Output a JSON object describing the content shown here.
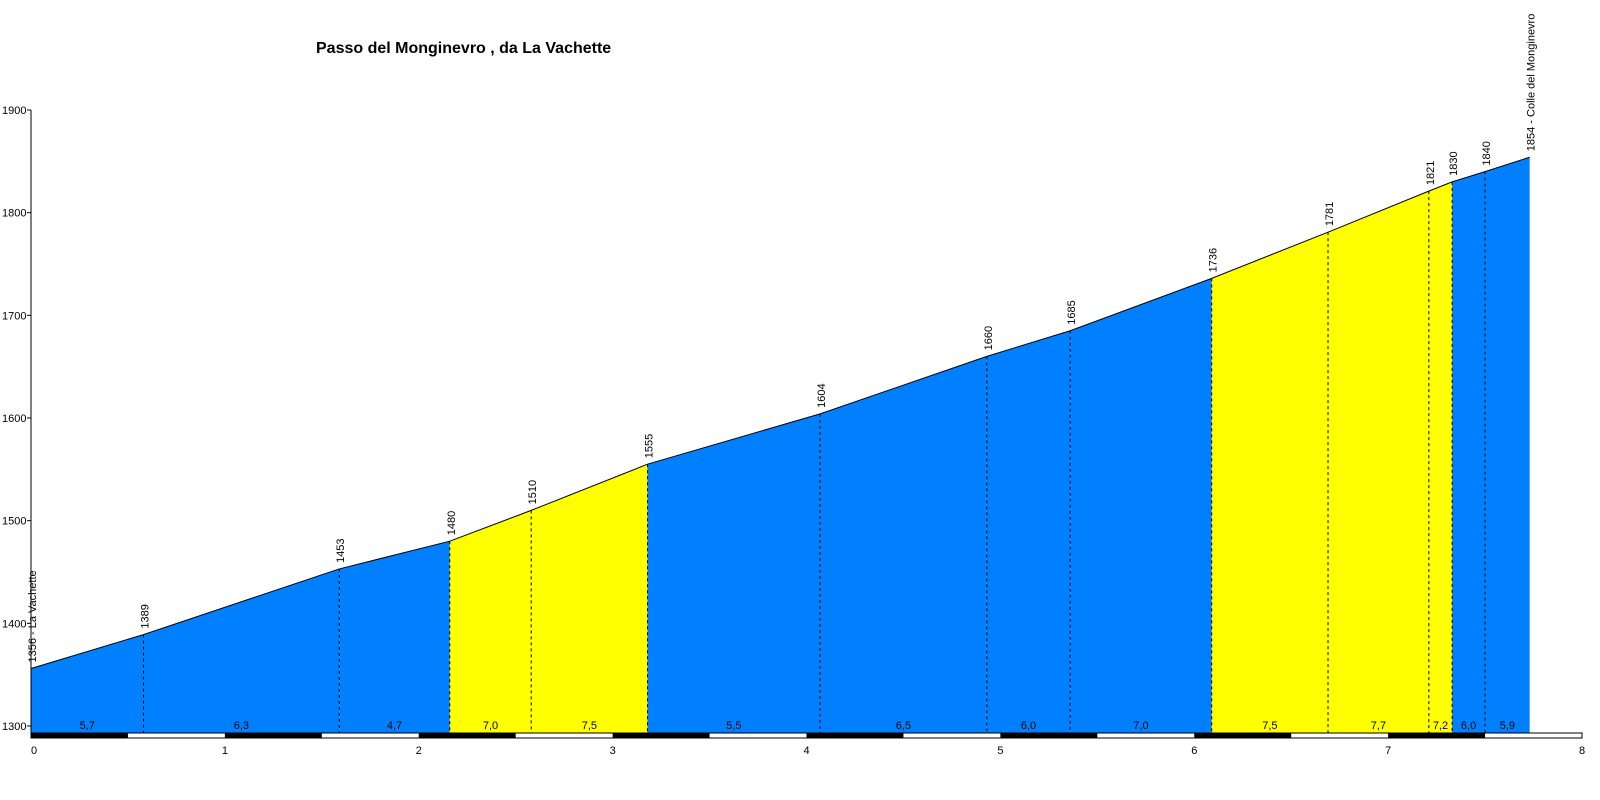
{
  "chart_data": {
    "type": "area",
    "title": "Passo del Monginevro , da La Vachette",
    "xlabel": "",
    "ylabel": "",
    "xlim": [
      0,
      8
    ],
    "ylim": [
      1300,
      1900
    ],
    "x_ticks": [
      "0",
      "1",
      "2",
      "3",
      "4",
      "5",
      "6",
      "7",
      "8"
    ],
    "y_ticks": [
      "1300",
      "1400",
      "1500",
      "1600",
      "1700",
      "1800",
      "1900"
    ],
    "colors": {
      "low_grade": "#0080ff",
      "high_grade": "#ffff00",
      "outline": "#000000"
    },
    "profile": [
      {
        "km": 0.0,
        "elev": 1356,
        "label": "1356 - La Vachette"
      },
      {
        "km": 0.58,
        "elev": 1389,
        "label": "1389"
      },
      {
        "km": 1.59,
        "elev": 1453,
        "label": "1453"
      },
      {
        "km": 2.16,
        "elev": 1480,
        "label": "1480"
      },
      {
        "km": 2.58,
        "elev": 1510,
        "label": "1510"
      },
      {
        "km": 3.18,
        "elev": 1555,
        "label": "1555"
      },
      {
        "km": 4.07,
        "elev": 1604,
        "label": "1604"
      },
      {
        "km": 4.93,
        "elev": 1660,
        "label": "1660"
      },
      {
        "km": 5.36,
        "elev": 1685,
        "label": "1685"
      },
      {
        "km": 6.09,
        "elev": 1736,
        "label": "1736"
      },
      {
        "km": 6.69,
        "elev": 1781,
        "label": "1781"
      },
      {
        "km": 7.21,
        "elev": 1821,
        "label": "1821"
      },
      {
        "km": 7.33,
        "elev": 1830,
        "label": "1830"
      },
      {
        "km": 7.5,
        "elev": 1840,
        "label": "1840"
      },
      {
        "km": 7.73,
        "elev": 1854,
        "label": "1854 - Colle del Monginevro"
      }
    ],
    "segments": [
      {
        "grade": "5,7",
        "color": "#0080ff"
      },
      {
        "grade": "6,3",
        "color": "#0080ff"
      },
      {
        "grade": "4,7",
        "color": "#0080ff"
      },
      {
        "grade": "7,0",
        "color": "#ffff00"
      },
      {
        "grade": "7,5",
        "color": "#ffff00"
      },
      {
        "grade": "5,5",
        "color": "#0080ff"
      },
      {
        "grade": "6,5",
        "color": "#0080ff"
      },
      {
        "grade": "6,0",
        "color": "#0080ff"
      },
      {
        "grade": "7,0",
        "color": "#0080ff"
      },
      {
        "grade": "7,5",
        "color": "#ffff00"
      },
      {
        "grade": "7,7",
        "color": "#ffff00"
      },
      {
        "grade": "7,2",
        "color": "#ffff00"
      },
      {
        "grade": "6,0",
        "color": "#0080ff"
      },
      {
        "grade": "5,9",
        "color": "#0080ff"
      }
    ]
  }
}
